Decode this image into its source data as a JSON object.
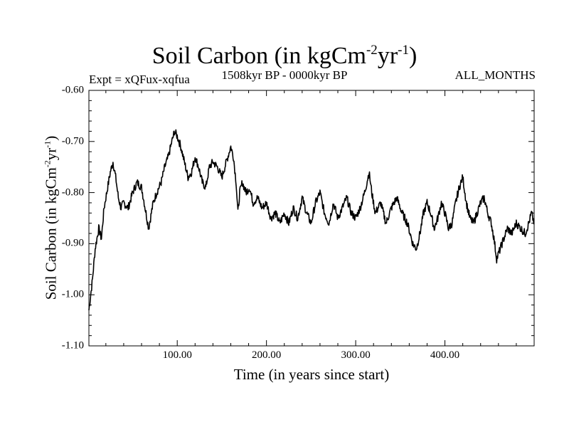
{
  "chart_data": {
    "type": "line",
    "title": "Soil Carbon (in kgCm",
    "title_sup1": "-2",
    "title_mid": "yr",
    "title_sup2": "-1",
    "title_end": ")",
    "subtitle_left": "Expt = xQFux-xqfua",
    "subtitle_center": "1508kyr BP - 0000kyr BP",
    "subtitle_right": "ALL_MONTHS",
    "xlabel": "Time (in years since start)",
    "ylabel": {
      "base": "Soil Carbon (in kgCm",
      "sup1": "-2",
      "mid": "yr",
      "sup2": "-1",
      "end": ")"
    },
    "xlim": [
      1,
      500
    ],
    "ylim": [
      -1.1,
      -0.6
    ],
    "xticks": [
      100,
      200,
      300,
      400
    ],
    "xtick_labels": [
      "100.00",
      "200.00",
      "300.00",
      "400.00"
    ],
    "yticks": [
      -1.1,
      -1.0,
      -0.9,
      -0.8,
      -0.7,
      -0.6
    ],
    "ytick_labels": [
      "-1.10",
      "-1.00",
      "-0.90",
      "-0.80",
      "-0.70",
      "-0.60"
    ],
    "grid": false,
    "series": [
      {
        "name": "Soil Carbon",
        "color": "#000000",
        "x": [
          1,
          5,
          8,
          12,
          15,
          18,
          21,
          25,
          28,
          31,
          34,
          37,
          40,
          45,
          50,
          55,
          60,
          64,
          68,
          70,
          73,
          77,
          82,
          86,
          90,
          94,
          97,
          100,
          104,
          108,
          112,
          116,
          120,
          124,
          128,
          132,
          136,
          140,
          145,
          150,
          155,
          160,
          163,
          166,
          168,
          170,
          173,
          177,
          181,
          185,
          190,
          195,
          200,
          205,
          210,
          215,
          220,
          225,
          230,
          235,
          240,
          245,
          250,
          255,
          260,
          265,
          270,
          275,
          280,
          285,
          290,
          295,
          300,
          305,
          310,
          315,
          318,
          322,
          328,
          334,
          340,
          346,
          352,
          358,
          364,
          368,
          372,
          376,
          380,
          384,
          388,
          392,
          396,
          400,
          404,
          408,
          412,
          416,
          420,
          424,
          428,
          432,
          436,
          440,
          444,
          448,
          452,
          455,
          458,
          462,
          466,
          470,
          475,
          480,
          485,
          490,
          494,
          497,
          500
        ],
        "y": [
          -1.03,
          -0.97,
          -0.91,
          -0.87,
          -0.89,
          -0.83,
          -0.8,
          -0.76,
          -0.74,
          -0.77,
          -0.81,
          -0.83,
          -0.82,
          -0.83,
          -0.8,
          -0.78,
          -0.79,
          -0.83,
          -0.87,
          -0.85,
          -0.82,
          -0.8,
          -0.78,
          -0.75,
          -0.73,
          -0.7,
          -0.68,
          -0.69,
          -0.71,
          -0.74,
          -0.77,
          -0.76,
          -0.73,
          -0.75,
          -0.78,
          -0.79,
          -0.75,
          -0.74,
          -0.75,
          -0.77,
          -0.74,
          -0.71,
          -0.73,
          -0.78,
          -0.84,
          -0.8,
          -0.78,
          -0.8,
          -0.79,
          -0.82,
          -0.81,
          -0.83,
          -0.82,
          -0.85,
          -0.84,
          -0.86,
          -0.84,
          -0.86,
          -0.83,
          -0.85,
          -0.81,
          -0.84,
          -0.86,
          -0.82,
          -0.8,
          -0.84,
          -0.86,
          -0.82,
          -0.85,
          -0.83,
          -0.81,
          -0.84,
          -0.85,
          -0.83,
          -0.8,
          -0.76,
          -0.8,
          -0.84,
          -0.82,
          -0.86,
          -0.83,
          -0.81,
          -0.84,
          -0.86,
          -0.9,
          -0.91,
          -0.88,
          -0.84,
          -0.82,
          -0.84,
          -0.87,
          -0.85,
          -0.82,
          -0.84,
          -0.87,
          -0.86,
          -0.82,
          -0.79,
          -0.77,
          -0.82,
          -0.85,
          -0.86,
          -0.84,
          -0.82,
          -0.81,
          -0.84,
          -0.86,
          -0.89,
          -0.93,
          -0.91,
          -0.89,
          -0.87,
          -0.88,
          -0.86,
          -0.87,
          -0.88,
          -0.86,
          -0.84,
          -0.86
        ]
      }
    ]
  }
}
